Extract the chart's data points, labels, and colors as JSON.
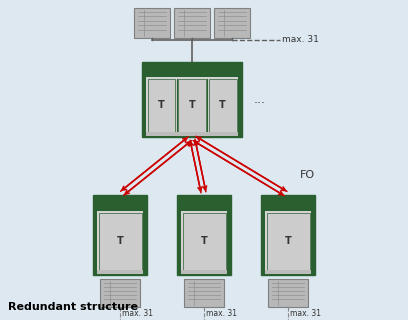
{
  "bg_color": "#dde8f0",
  "green_dark": "#2a6030",
  "slot_gray": "#d0d0d0",
  "device_gray": "#b8b8b8",
  "device_edge": "#808080",
  "arrow_color": "#cc0000",
  "line_color": "#606060",
  "text_color": "#222222",
  "title": "Redundant structure",
  "fo_label": "FO",
  "max31_label": "max. 31",
  "T_label": "T",
  "dots_label": "...",
  "fig_w": 4.08,
  "fig_h": 3.2,
  "dpi": 100
}
